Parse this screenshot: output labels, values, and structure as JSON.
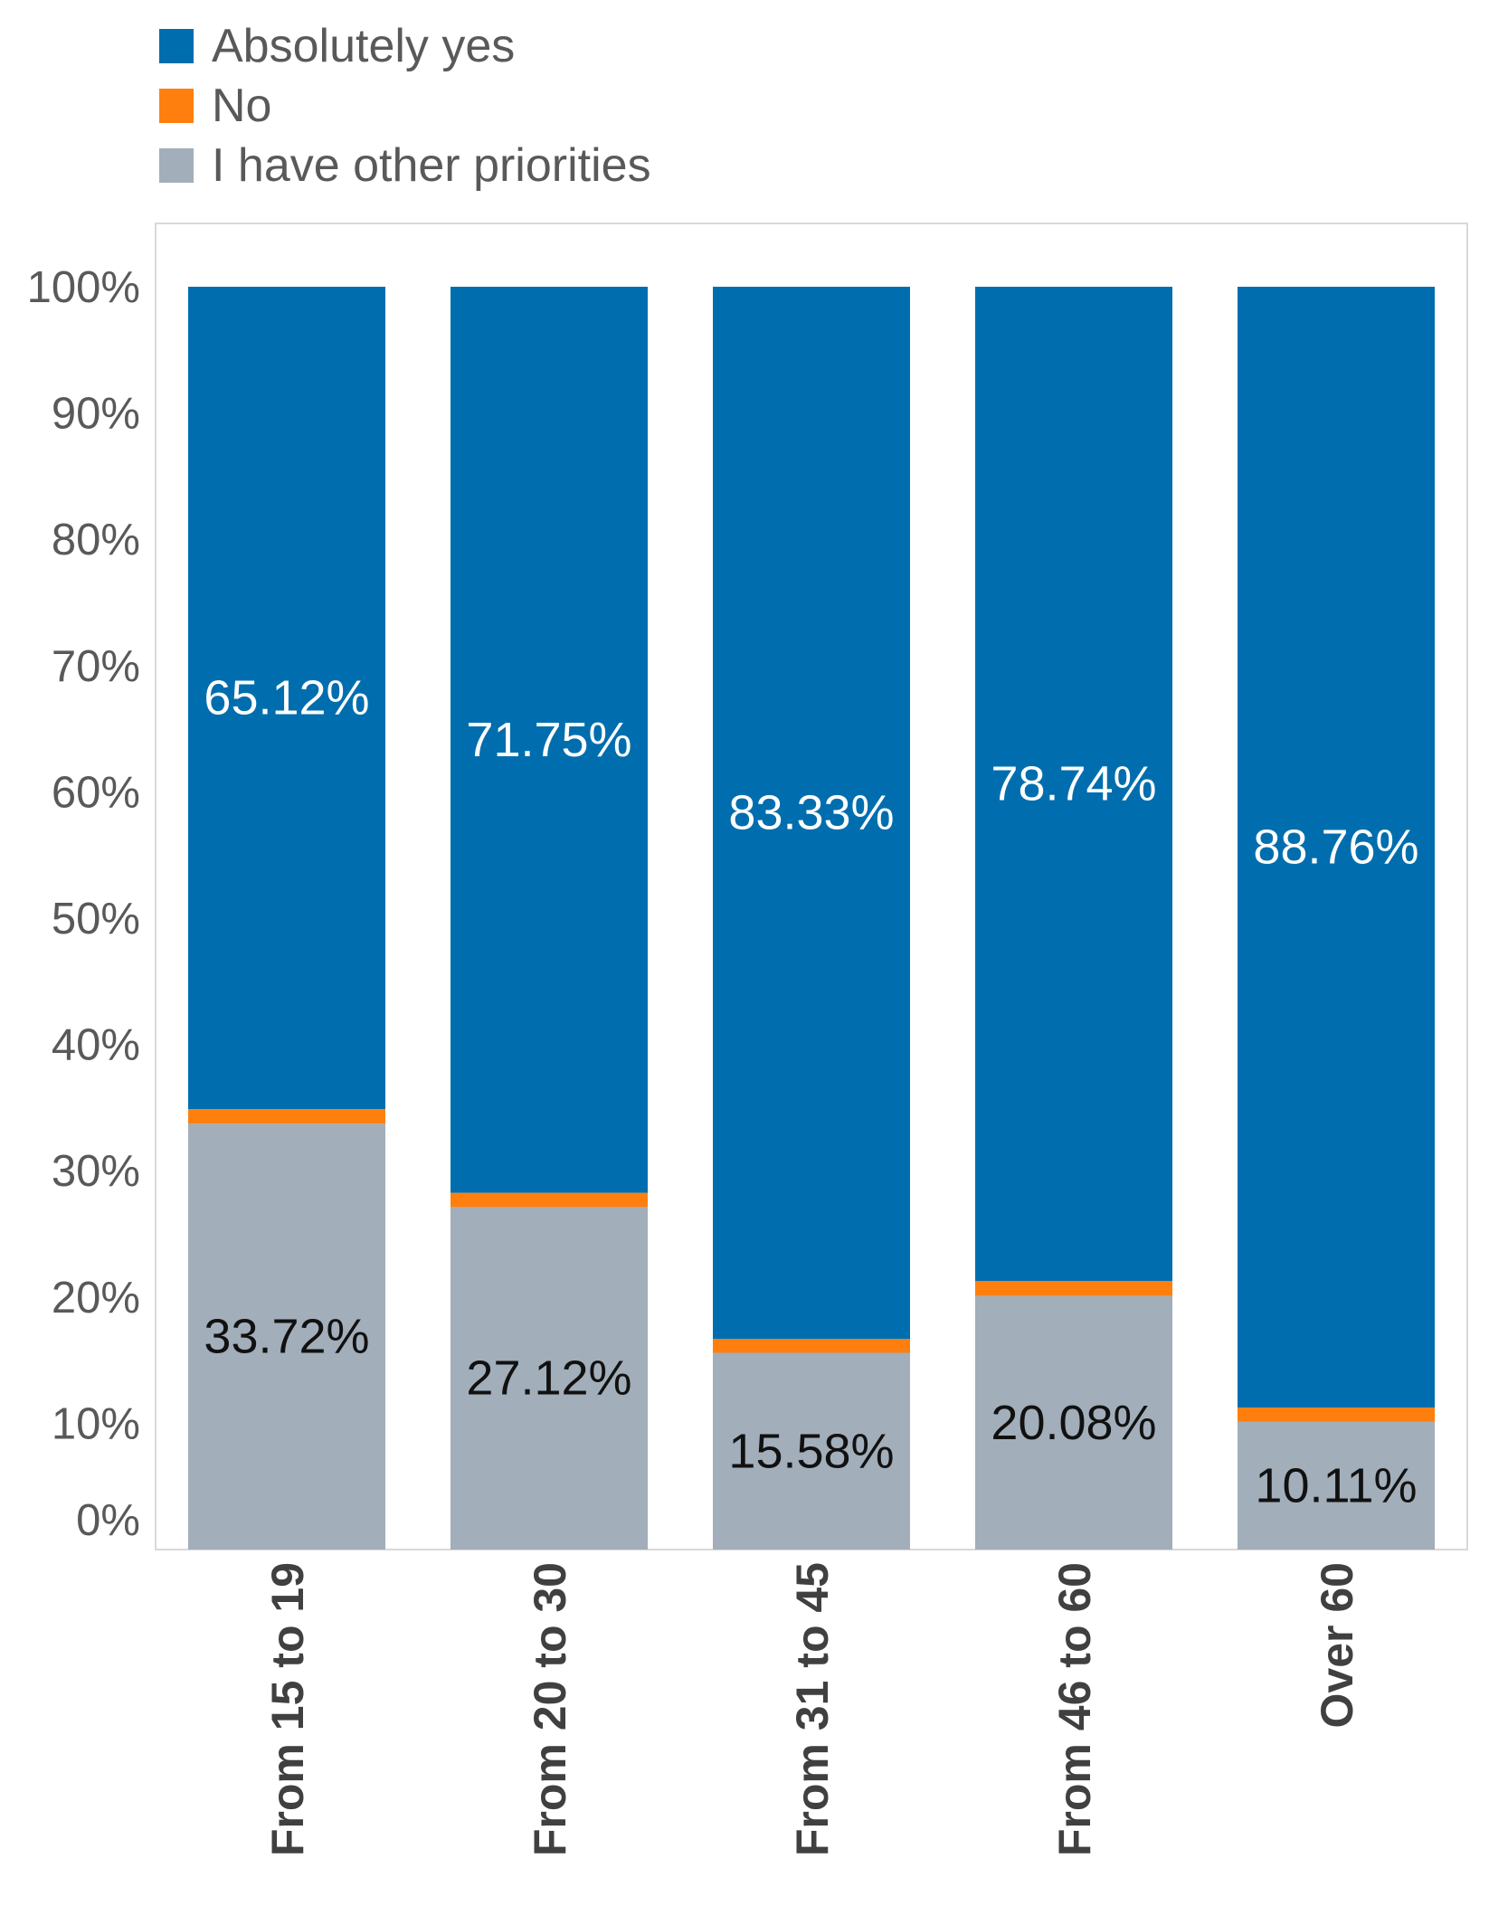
{
  "chart_data": {
    "type": "stacked-bar",
    "orientation": "vertical",
    "categories": [
      "From 15 to 19",
      "From 20 to 30",
      "From 31 to 45",
      "From 46 to 60",
      "Over 60"
    ],
    "series": [
      {
        "name": "I have other priorities",
        "color": "#A2AEBA",
        "values": [
          33.72,
          27.12,
          15.58,
          20.08,
          10.11
        ],
        "labels": [
          "33.72%",
          "27.12%",
          "15.58%",
          "20.08%",
          "10.11%"
        ]
      },
      {
        "name": "No",
        "color": "#FF7F0E",
        "values": [
          1.16,
          1.13,
          1.09,
          1.18,
          1.13
        ]
      },
      {
        "name": "Absolutely yes",
        "color": "#006EAE",
        "values": [
          65.12,
          71.75,
          83.33,
          78.74,
          88.76
        ],
        "labels": [
          "65.12%",
          "71.75%",
          "83.33%",
          "78.74%",
          "88.76%"
        ]
      }
    ],
    "y_ticks": [
      "0%",
      "10%",
      "20%",
      "30%",
      "40%",
      "50%",
      "60%",
      "70%",
      "80%",
      "90%",
      "100%"
    ],
    "ylim": [
      0,
      100
    ],
    "legend": [
      "Absolutely yes",
      "No",
      "I have other priorities"
    ],
    "legend_position": "top-left",
    "grid": false
  }
}
